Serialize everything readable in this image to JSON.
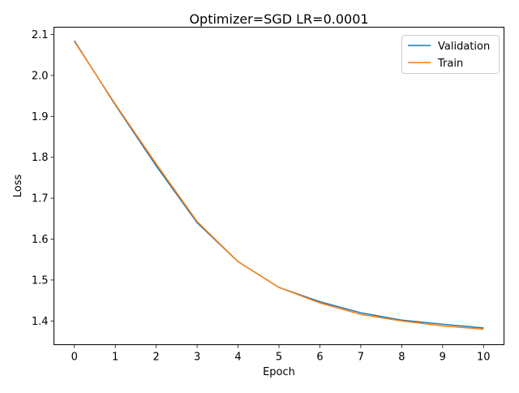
{
  "chart_data": {
    "type": "line",
    "title": "Optimizer=SGD LR=0.0001",
    "xlabel": "Epoch",
    "ylabel": "Loss",
    "x": [
      0,
      1,
      2,
      3,
      4,
      5,
      6,
      7,
      8,
      9,
      10
    ],
    "xlim": [
      -0.5,
      10.5
    ],
    "ylim": [
      1.342,
      2.118
    ],
    "x_ticks": [
      0,
      1,
      2,
      3,
      4,
      5,
      6,
      7,
      8,
      9,
      10
    ],
    "y_ticks": [
      1.4,
      1.5,
      1.6,
      1.7,
      1.8,
      1.9,
      2.0,
      2.1
    ],
    "grid": false,
    "legend_position": "top-right",
    "series": [
      {
        "name": "Validation",
        "color": "#1f77b4",
        "values": [
          2.085,
          1.928,
          1.779,
          1.64,
          1.545,
          1.482,
          1.447,
          1.42,
          1.402,
          1.392,
          1.383
        ]
      },
      {
        "name": "Train",
        "color": "#ff7f0e",
        "values": [
          2.083,
          1.93,
          1.784,
          1.643,
          1.545,
          1.482,
          1.444,
          1.416,
          1.4,
          1.388,
          1.38
        ]
      }
    ]
  }
}
